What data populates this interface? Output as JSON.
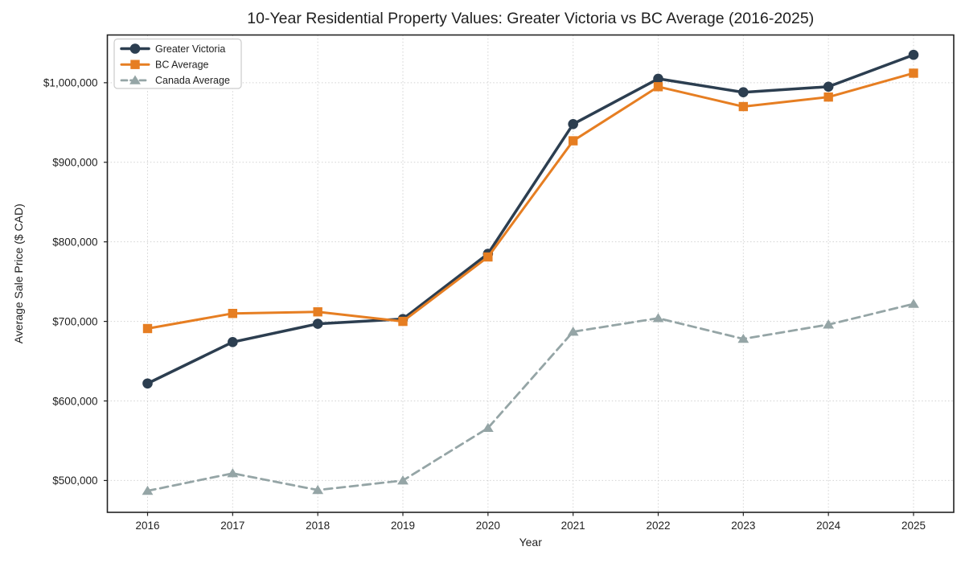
{
  "figure": {
    "background": "#ffffff",
    "frame_color": "#222222",
    "grid_color": "#d2d2d2",
    "text_color": "#1f1f1f"
  },
  "chart_data": {
    "type": "line",
    "title": "10-Year Residential Property Values: Greater Victoria vs BC Average (2016-2025)",
    "xlabel": "Year",
    "ylabel": "Average Sale Price ($ CAD)",
    "x": [
      2016,
      2017,
      2018,
      2019,
      2020,
      2021,
      2022,
      2023,
      2024,
      2025
    ],
    "series": [
      {
        "name": "Greater Victoria",
        "color": "#2c3e50",
        "marker": "circle",
        "line_style": "solid",
        "line_width": 3.5,
        "values": [
          622000,
          674000,
          697000,
          703000,
          785000,
          948000,
          1005000,
          988000,
          995000,
          1035000
        ]
      },
      {
        "name": "BC Average",
        "color": "#e67e22",
        "marker": "square",
        "line_style": "solid",
        "line_width": 3,
        "values": [
          691000,
          710000,
          712000,
          700000,
          781000,
          927000,
          995000,
          970000,
          982000,
          1012000
        ]
      },
      {
        "name": "Canada Average",
        "color": "#95a5a6",
        "marker": "triangle",
        "line_style": "dashed",
        "line_width": 2.8,
        "values": [
          487000,
          509000,
          488000,
          500000,
          566000,
          687000,
          704000,
          678000,
          696000,
          722000
        ]
      }
    ],
    "ylim": [
      460000,
      1060000
    ],
    "yticks": [
      500000,
      600000,
      700000,
      800000,
      900000,
      1000000
    ],
    "ytick_labels": [
      "$500,000",
      "$600,000",
      "$700,000",
      "$800,000",
      "$900,000",
      "$1,000,000"
    ],
    "grid": true,
    "grid_style": "dotted",
    "legend_position": "upper-left",
    "legend_labels": [
      "Greater Victoria",
      "BC Average",
      "Canada Average"
    ]
  }
}
